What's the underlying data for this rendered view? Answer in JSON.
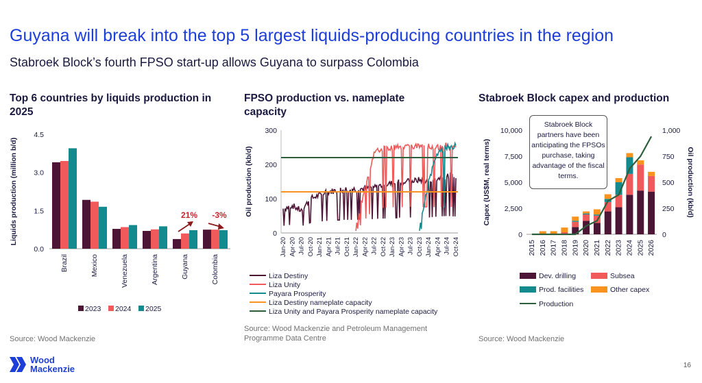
{
  "header": {
    "title": "Guyana will break into the top 5 largest liquids-producing countries in the region",
    "subtitle": "Stabroek Block’s fourth FPSO start-up allows Guyana to surpass Colombia"
  },
  "footer": {
    "page_number": "16",
    "logo_line1": "Wood",
    "logo_line2": "Mackenzie"
  },
  "chart_data": [
    {
      "id": "top6",
      "type": "bar",
      "title": "Top 6 countries by liquids production in 2025",
      "ylabel": "Liquids production (million b/d)",
      "ylim": [
        0,
        4.5
      ],
      "yticks": [
        "0.0",
        "1.5",
        "3.0",
        "4.5"
      ],
      "categories": [
        "Brazil",
        "Mexico",
        "Venezuela",
        "Argentina",
        "Guyana",
        "Colombia"
      ],
      "series": [
        {
          "name": "2023",
          "color": "#4d1535",
          "values": [
            3.4,
            1.92,
            0.78,
            0.7,
            0.38,
            0.75
          ]
        },
        {
          "name": "2024",
          "color": "#f05a5a",
          "values": [
            3.45,
            1.85,
            0.85,
            0.76,
            0.6,
            0.75
          ]
        },
        {
          "name": "2025",
          "color": "#138a8e",
          "values": [
            3.95,
            1.65,
            0.93,
            0.88,
            0.73,
            0.73
          ]
        }
      ],
      "annotations": [
        {
          "text": "21%",
          "category": "Guyana",
          "direction": "up"
        },
        {
          "text": "-3%",
          "category": "Colombia",
          "direction": "down"
        }
      ],
      "source": "Source: Wood Mackenzie"
    },
    {
      "id": "fpso",
      "type": "line",
      "title": "FPSO production vs. nameplate capacity",
      "ylabel": "Oil production (kb/d)",
      "ylim": [
        0,
        300
      ],
      "yticks": [
        "0",
        "100",
        "200",
        "300"
      ],
      "xticks": [
        "Jan-20",
        "Apr-20",
        "Jul-20",
        "Oct-20",
        "Jan-21",
        "Apr-21",
        "Jul-21",
        "Oct-21",
        "Jan-22",
        "Apr-22",
        "Jul-22",
        "Oct-22",
        "Jan-23",
        "Apr-23",
        "Jul-23",
        "Oct-23",
        "Jan-24",
        "Apr-24",
        "Jul-24",
        "Oct-24"
      ],
      "series": [
        {
          "name": "Liza Destiny",
          "color": "#4d1535",
          "x": [
            "Jan-20",
            "Apr-20",
            "Jul-20",
            "Oct-20",
            "Jan-21",
            "Apr-21",
            "Jul-21",
            "Oct-21",
            "Jan-22",
            "Apr-22",
            "Jul-22",
            "Oct-22",
            "Jan-23",
            "Apr-23",
            "Jul-23",
            "Oct-23",
            "Jan-24",
            "Apr-24",
            "Jul-24",
            "Oct-24"
          ],
          "values": [
            70,
            80,
            65,
            100,
            110,
            120,
            125,
            128,
            128,
            130,
            135,
            140,
            145,
            150,
            150,
            155,
            150,
            160,
            165,
            160
          ]
        },
        {
          "name": "Liza Unity",
          "color": "#f05a5a",
          "x": [
            "Jan-22",
            "Apr-22",
            "Jul-22",
            "Oct-22",
            "Jan-23",
            "Apr-23",
            "Jul-23",
            "Oct-23",
            "Jan-24",
            "Apr-24",
            "Jul-24",
            "Oct-24"
          ],
          "values": [
            20,
            130,
            235,
            245,
            250,
            250,
            255,
            250,
            255,
            250,
            255,
            250
          ]
        },
        {
          "name": "Payara Prosperity",
          "color": "#138a8e",
          "x": [
            "Oct-23",
            "Jan-24",
            "Apr-24",
            "Jul-24",
            "Oct-24"
          ],
          "values": [
            10,
            150,
            235,
            250,
            255
          ]
        },
        {
          "name": "Liza Destiny nameplate capacity",
          "color": "#f7931e",
          "constant": 120
        },
        {
          "name": "Liza Unity and Payara Prosperity nameplate capacity",
          "color": "#2c5e3c",
          "constant": 220
        }
      ],
      "source": "Source: Wood Mackenzie and Petroleum Management Programme Data Centre"
    },
    {
      "id": "stabroek",
      "type": "bar",
      "stacked": true,
      "title": "Stabroek Block capex and production",
      "ylabel": "Capex (US$M, real terms)",
      "y2label": "Oil production (kb/d)",
      "ylim": [
        0,
        10000
      ],
      "y2lim": [
        0,
        1000
      ],
      "yticks": [
        "0",
        "2,500",
        "5,000",
        "7,500",
        "10,000"
      ],
      "y2ticks": [
        "0",
        "250",
        "500",
        "750",
        "1,000"
      ],
      "categories": [
        "2015",
        "2016",
        "2017",
        "2018",
        "2019",
        "2020",
        "2021",
        "2022",
        "2023",
        "2024",
        "2025",
        "2026"
      ],
      "series": [
        {
          "name": "Dev. drilling",
          "color": "#4d1535",
          "values": [
            0,
            0,
            0,
            0,
            700,
            1300,
            1100,
            2200,
            2600,
            3800,
            4200,
            4100
          ]
        },
        {
          "name": "Subsea",
          "color": "#f05a5a",
          "values": [
            0,
            0,
            0,
            200,
            500,
            600,
            700,
            900,
            1200,
            2000,
            2500,
            1500
          ]
        },
        {
          "name": "Prod. facilities",
          "color": "#138a8e",
          "values": [
            0,
            0,
            0,
            0,
            100,
            100,
            100,
            300,
            1200,
            1600,
            0,
            0
          ]
        },
        {
          "name": "Other capex",
          "color": "#f7931e",
          "values": [
            0,
            300,
            300,
            450,
            400,
            200,
            500,
            450,
            400,
            400,
            400,
            400
          ]
        }
      ],
      "line": {
        "name": "Production",
        "color": "#2c5e3c",
        "values": [
          0,
          0,
          0,
          0,
          0,
          80,
          130,
          320,
          380,
          630,
          750,
          940
        ]
      },
      "callout": "Stabroek Block partners have been anticipating the FPSOs purchase, taking advantage of the fiscal terms.",
      "source": "Source: Wood Mackenzie"
    }
  ]
}
